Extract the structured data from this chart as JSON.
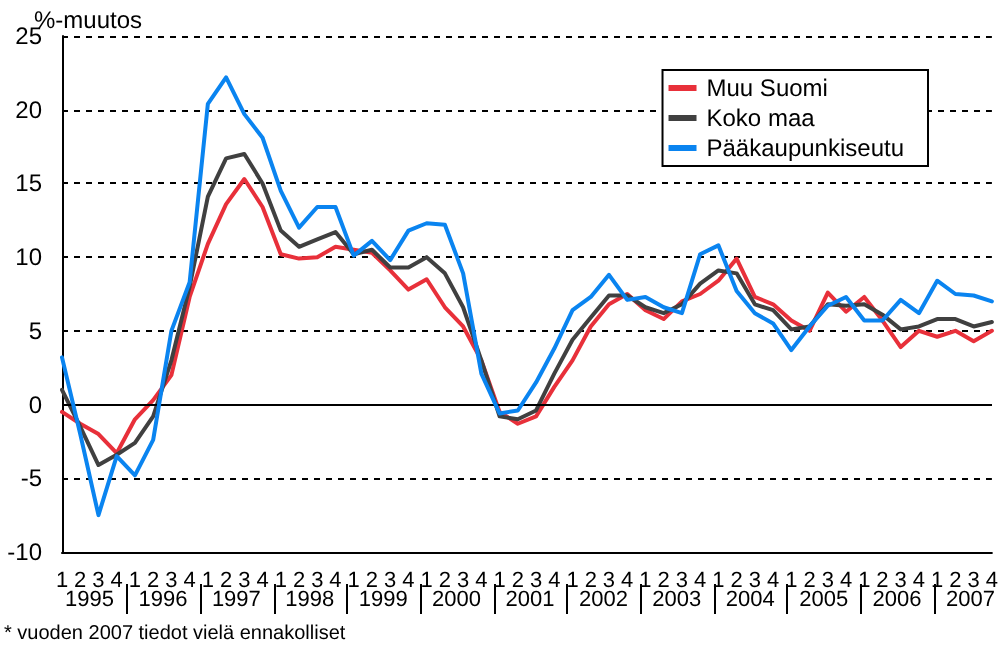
{
  "chart_data": {
    "type": "line",
    "ylabel": "%-muutos",
    "categories": [
      "1",
      "2",
      "3",
      "4",
      "1",
      "2",
      "3",
      "4",
      "1",
      "2",
      "3",
      "4",
      "1",
      "2",
      "3",
      "4",
      "1",
      "2",
      "3",
      "4",
      "1",
      "2",
      "3",
      "4",
      "1",
      "2",
      "3",
      "4",
      "1",
      "2",
      "3",
      "4",
      "1",
      "2",
      "3",
      "4",
      "1",
      "2",
      "3",
      "4",
      "1",
      "2",
      "3",
      "4",
      "1",
      "2",
      "3",
      "4",
      "1",
      "2",
      "3",
      "4"
    ],
    "annotations": [
      "1995",
      "1996",
      "1997",
      "1998",
      "1999",
      "2000",
      "2001",
      "2002",
      "2003",
      "2004",
      "2005",
      "2006",
      "2007",
      "* vuoden 2007 tiedot vielä ennakolliset"
    ],
    "series": [
      {
        "name": "Muu Suomi",
        "color": "#e8303a",
        "values": [
          -0.5,
          -1.3,
          -2.0,
          -3.3,
          -1.0,
          0.3,
          2.0,
          7.3,
          10.9,
          13.6,
          15.3,
          13.4,
          10.2,
          9.9,
          10.0,
          10.7,
          10.5,
          10.3,
          9.1,
          7.8,
          8.5,
          6.6,
          5.3,
          3.0,
          -0.5,
          -1.3,
          -0.8,
          1.2,
          3.0,
          5.3,
          6.8,
          7.5,
          6.4,
          5.8,
          7.0,
          7.5,
          8.4,
          9.9,
          7.3,
          6.8,
          5.7,
          5.0,
          7.6,
          6.3,
          7.3,
          5.7,
          3.9,
          5.0,
          4.6,
          5.0,
          4.3,
          5.0
        ]
      },
      {
        "name": "Koko maa",
        "color": "#404040",
        "values": [
          1.0,
          -1.5,
          -4.1,
          -3.4,
          -2.6,
          -0.8,
          3.0,
          8.0,
          14.1,
          16.7,
          17.0,
          15.0,
          11.8,
          10.7,
          11.2,
          11.7,
          10.2,
          10.5,
          9.3,
          9.3,
          10.0,
          8.9,
          6.6,
          3.0,
          -0.8,
          -1.0,
          -0.4,
          2.1,
          4.4,
          5.9,
          7.4,
          7.4,
          6.6,
          6.2,
          6.8,
          8.2,
          9.1,
          8.9,
          6.8,
          6.4,
          5.1,
          5.3,
          6.8,
          6.7,
          6.8,
          6.1,
          5.1,
          5.3,
          5.8,
          5.8,
          5.3,
          5.6
        ]
      },
      {
        "name": "Pääkaupunkiseutu",
        "color": "#0a84f0",
        "values": [
          3.2,
          -2.0,
          -7.5,
          -3.5,
          -4.8,
          -2.4,
          5.0,
          8.3,
          20.4,
          22.2,
          19.7,
          18.1,
          14.5,
          12.0,
          13.4,
          13.4,
          10.1,
          11.1,
          9.8,
          11.8,
          12.3,
          12.2,
          8.9,
          2.1,
          -0.6,
          -0.4,
          1.5,
          3.8,
          6.4,
          7.3,
          8.8,
          7.1,
          7.3,
          6.6,
          6.2,
          10.2,
          10.8,
          7.7,
          6.2,
          5.5,
          3.7,
          5.3,
          6.7,
          7.3,
          5.7,
          5.7,
          7.1,
          6.2,
          8.4,
          7.5,
          7.4,
          7.0
        ]
      }
    ],
    "ylim": [
      -10,
      25
    ],
    "yticks": [
      -10,
      -5,
      0,
      5,
      10,
      15,
      20,
      25
    ],
    "grid": "y",
    "legend": "top right",
    "marker": "none",
    "line_style": "solid",
    "ref_lines": [
      {
        "axis": "y",
        "value": 0,
        "color": "#000000",
        "line_style": "solid"
      }
    ]
  }
}
